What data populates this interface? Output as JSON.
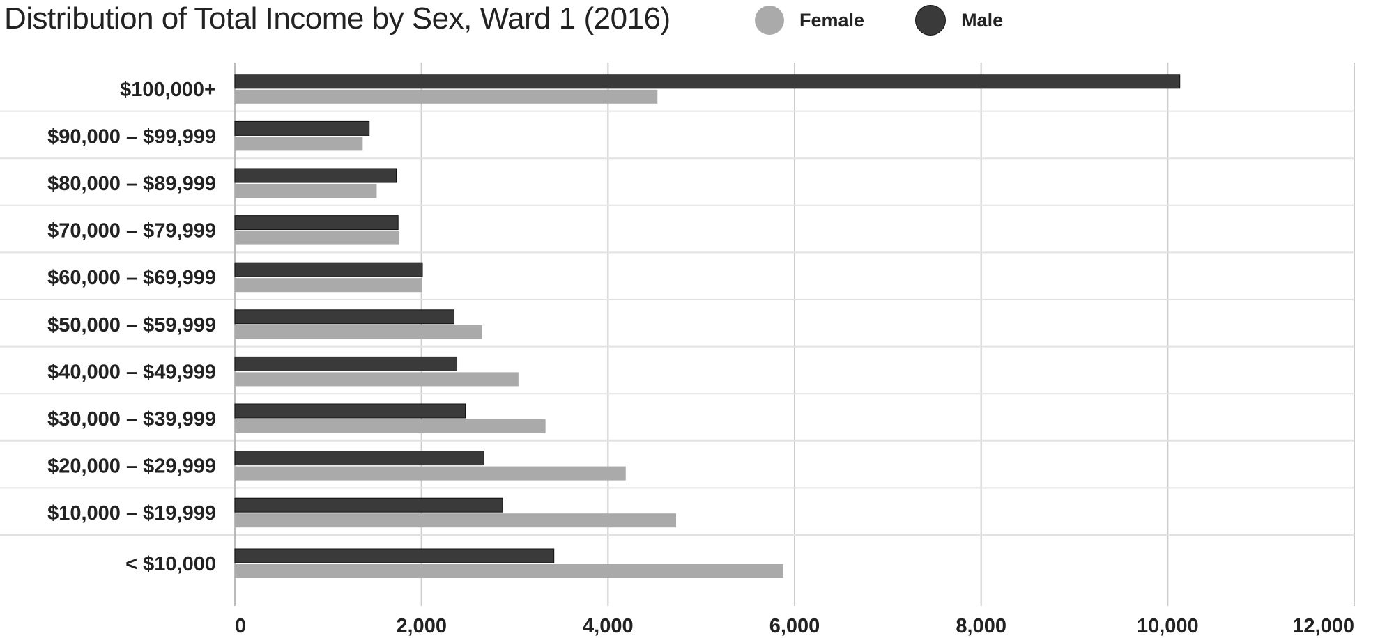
{
  "chart_data": {
    "type": "bar",
    "orientation": "horizontal",
    "title": "Distribution of Total Income by Sex, Ward 1 (2016)",
    "categories": [
      "$100,000+",
      "$90,000 – $99,999",
      "$80,000 – $89,999",
      "$70,000 – $79,999",
      "$60,000 – $69,999",
      "$50,000 – $59,999",
      "$40,000 – $49,999",
      "$30,000 – $39,999",
      "$20,000 – $29,999",
      "$10,000 – $19,999",
      "< $10,000"
    ],
    "series": [
      {
        "name": "Male",
        "color": "#3a3a3a",
        "values": [
          10130,
          1440,
          1730,
          1750,
          2010,
          2350,
          2380,
          2470,
          2670,
          2870,
          3420
        ]
      },
      {
        "name": "Female",
        "color": "#aaaaaa",
        "values": [
          4530,
          1370,
          1520,
          1760,
          2010,
          2650,
          3040,
          3330,
          4190,
          4730,
          5880
        ]
      }
    ],
    "xlim": [
      0,
      12000
    ],
    "xticks": [
      "0",
      "2,000",
      "4,000",
      "6,000",
      "8,000",
      "10,000",
      "12,000"
    ],
    "grid": true,
    "legend_position": "top",
    "legend_order": [
      "Female",
      "Male"
    ]
  }
}
